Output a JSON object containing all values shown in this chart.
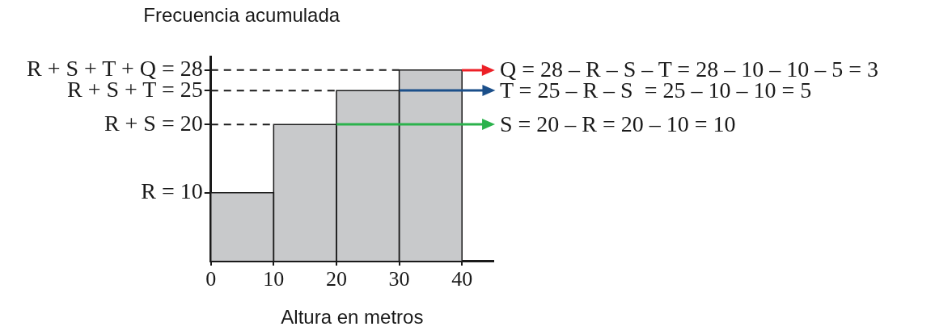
{
  "chart_data": {
    "type": "histogram",
    "bins": [
      0,
      10,
      20,
      30,
      40
    ],
    "values": [
      10,
      20,
      25,
      28
    ],
    "color": "#c8c9cb",
    "xlabel": "Altura en metros",
    "ylabel": "Frecuencia acumulada",
    "xlim": [
      0,
      45
    ],
    "xticks": [
      0,
      10,
      20,
      30,
      40
    ],
    "ylim": [
      0,
      30
    ],
    "yticks": [
      {
        "value": 10,
        "label": "R = 10"
      },
      {
        "value": 20,
        "label": "R + S = 20"
      },
      {
        "value": 25,
        "label": "R + S + T = 25"
      },
      {
        "value": 28,
        "label": "R + S + T + Q = 28"
      }
    ],
    "ref_lines": [
      {
        "axis": "y",
        "value": 20,
        "color": "#1a1a1a",
        "line_style": "dashed"
      },
      {
        "axis": "y",
        "value": 25,
        "color": "#1a1a1a",
        "line_style": "dashed"
      },
      {
        "axis": "y",
        "value": 28,
        "color": "#1a1a1a",
        "line_style": "dashed"
      }
    ],
    "annotations": [
      {
        "text": "S = 20 – R = 20 – 10 = 10",
        "x": 20,
        "y": 20
      },
      {
        "text": "T = 25 – R – S  = 25 – 10 – 10 = 5",
        "x": 30,
        "y": 25
      },
      {
        "text": "Q = 28 – R – S – T = 28 – 10 – 10 – 5 = 3",
        "x": 40,
        "y": 28
      }
    ]
  }
}
